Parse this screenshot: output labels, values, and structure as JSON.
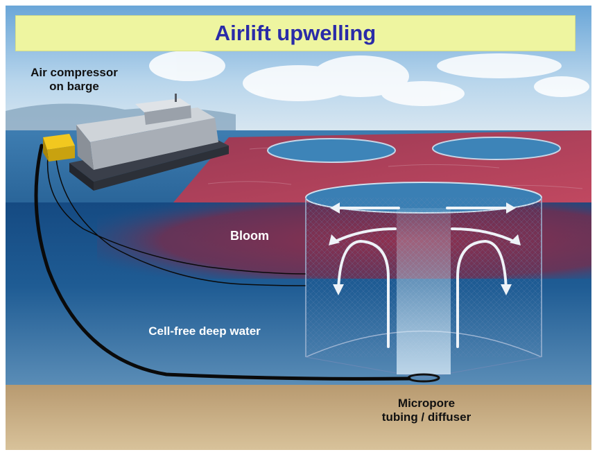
{
  "title": "Airlift upwelling",
  "labels": {
    "compressor_line1": "Air compressor",
    "compressor_line2": "on barge",
    "bloom": "Bloom",
    "deep_water": "Cell-free deep water",
    "micropore_line1": "Micropore",
    "micropore_line2": "tubing / diffuser"
  },
  "colors": {
    "title_banner": "#eef5a0",
    "title_text": "#2a2ba8",
    "sky": "#9cc4e4",
    "bloom_surface": "#b44258",
    "bloom_layer": "#8a2a44",
    "deep_water": "#1f5a92",
    "seabed": "#c9ab7c"
  }
}
